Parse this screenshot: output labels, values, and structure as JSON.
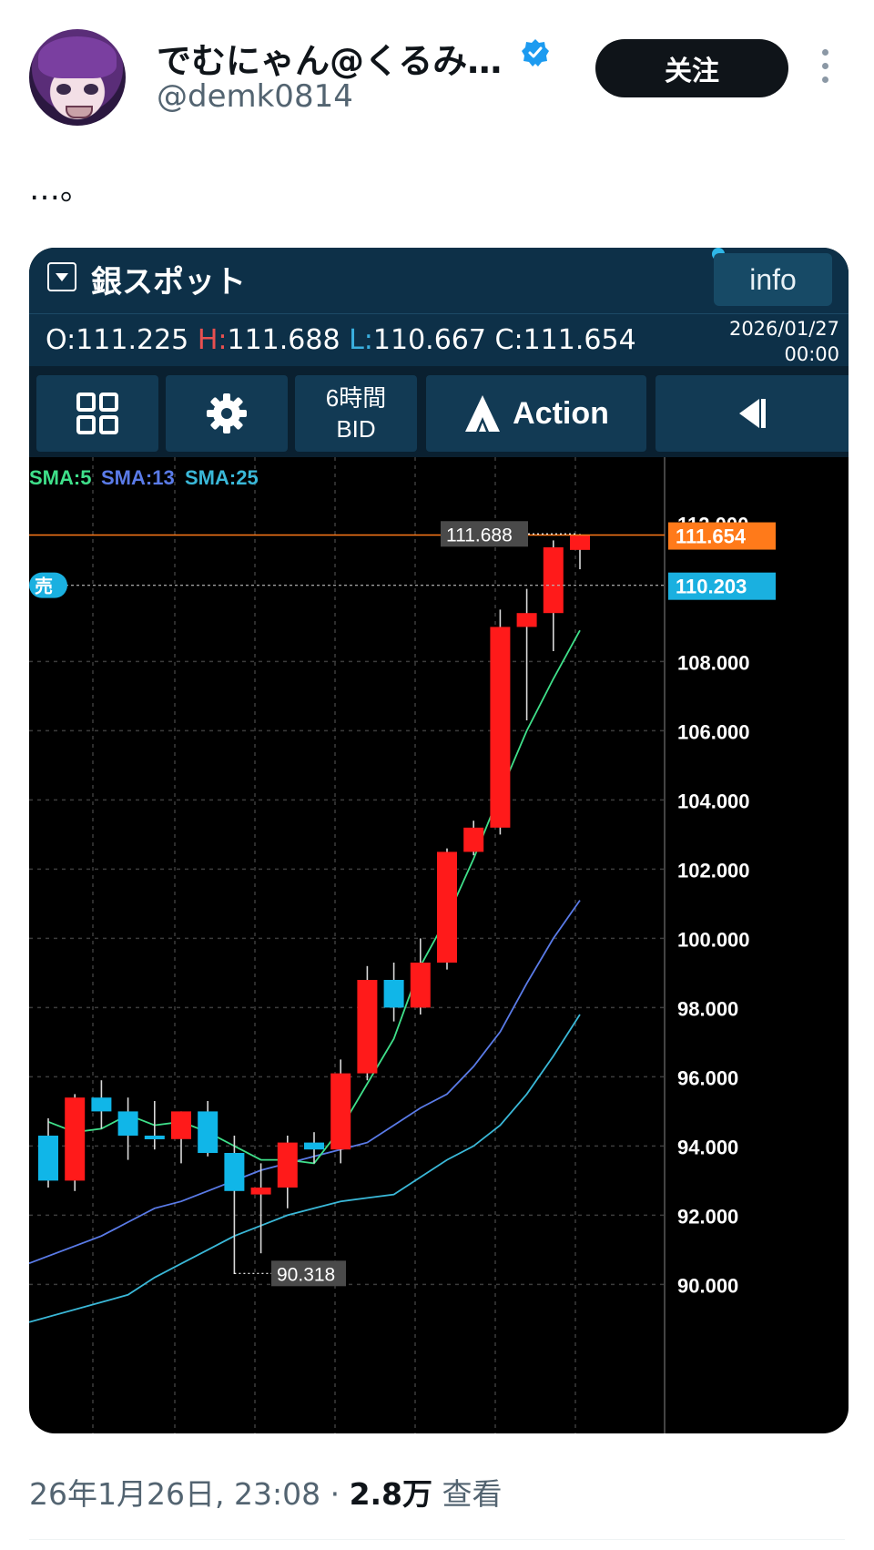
{
  "tweet": {
    "author_name": "でむにゃん@くるみ…",
    "handle": "@demk0814",
    "follow_label": "关注",
    "text": "…。",
    "date": "26年1月26日, 23:08",
    "views_count": "2.8万",
    "views_label": "查看"
  },
  "app": {
    "symbol": "銀スポット",
    "info_label": "info",
    "ohlc": {
      "o_label": "O:",
      "o_value": "111.225",
      "h_label": "H:",
      "h_value": "111.688",
      "l_label": "L:",
      "l_value": "110.667",
      "c_label": "C:",
      "c_value": "111.654"
    },
    "date": "2026/01/27",
    "time": "00:00",
    "toolbar": {
      "timeframe": "6時間",
      "price_type": "BID",
      "action_label": "Action"
    },
    "icons": [
      "grid-icon",
      "gear-icon",
      "action-logo-icon",
      "collapse-left-icon",
      "dropdown-icon",
      "verified-icon",
      "more-icon"
    ]
  },
  "chart_data": {
    "type": "candlestick",
    "sma_labels": [
      {
        "name": "SMA:5",
        "color": "#3fe08a"
      },
      {
        "name": "SMA:13",
        "color": "#5a7be8"
      },
      {
        "name": "SMA:25",
        "color": "#3ab8d8"
      }
    ],
    "ylim": [
      89,
      113.5
    ],
    "y_ticks": [
      "90.000",
      "92.000",
      "94.000",
      "96.000",
      "98.000",
      "100.000",
      "102.000",
      "104.000",
      "106.000",
      "108.000"
    ],
    "candles": [
      {
        "o": 94.3,
        "h": 94.8,
        "l": 92.8,
        "c": 93.0
      },
      {
        "o": 93.0,
        "h": 95.5,
        "l": 92.7,
        "c": 95.4
      },
      {
        "o": 95.4,
        "h": 95.9,
        "l": 94.5,
        "c": 95.0
      },
      {
        "o": 95.0,
        "h": 95.4,
        "l": 93.6,
        "c": 94.3
      },
      {
        "o": 94.3,
        "h": 95.3,
        "l": 93.9,
        "c": 94.2
      },
      {
        "o": 94.2,
        "h": 95.0,
        "l": 93.5,
        "c": 95.0
      },
      {
        "o": 95.0,
        "h": 95.3,
        "l": 93.7,
        "c": 93.8
      },
      {
        "o": 93.8,
        "h": 94.3,
        "l": 90.3,
        "c": 92.7
      },
      {
        "o": 92.6,
        "h": 93.5,
        "l": 90.9,
        "c": 92.8
      },
      {
        "o": 92.8,
        "h": 94.3,
        "l": 92.2,
        "c": 94.1
      },
      {
        "o": 94.1,
        "h": 94.4,
        "l": 93.5,
        "c": 93.9
      },
      {
        "o": 93.9,
        "h": 96.5,
        "l": 93.5,
        "c": 96.1
      },
      {
        "o": 96.1,
        "h": 99.2,
        "l": 95.9,
        "c": 98.8
      },
      {
        "o": 98.8,
        "h": 99.3,
        "l": 97.6,
        "c": 98.0
      },
      {
        "o": 98.0,
        "h": 100.0,
        "l": 97.8,
        "c": 99.3
      },
      {
        "o": 99.3,
        "h": 102.6,
        "l": 99.1,
        "c": 102.5
      },
      {
        "o": 102.5,
        "h": 103.4,
        "l": 102.4,
        "c": 103.2
      },
      {
        "o": 103.2,
        "h": 109.5,
        "l": 103.0,
        "c": 109.0
      },
      {
        "o": 109.0,
        "h": 110.1,
        "l": 106.3,
        "c": 109.4
      },
      {
        "o": 109.4,
        "h": 111.5,
        "l": 108.3,
        "c": 111.3
      },
      {
        "o": 111.225,
        "h": 111.688,
        "l": 110.667,
        "c": 111.654
      }
    ],
    "sma5": [
      94.7,
      94.4,
      94.5,
      94.9,
      94.6,
      94.7,
      94.4,
      94.0,
      93.6,
      93.6,
      93.5,
      94.5,
      95.8,
      97.1,
      99.2,
      100.6,
      102.3,
      104.2,
      106.0,
      107.5,
      108.9
    ],
    "sma13": [
      91.4,
      91.8,
      92.2,
      92.4,
      92.7,
      93.0,
      93.3,
      93.5,
      93.7,
      93.9,
      94.1,
      94.6,
      95.1,
      95.5,
      96.3,
      97.3,
      98.7,
      100.0,
      101.1
    ],
    "sma25": [
      89.7,
      90.2,
      90.6,
      91.0,
      91.4,
      91.7,
      92.0,
      92.2,
      92.4,
      92.5,
      92.6,
      93.1,
      93.6,
      94.0,
      94.6,
      95.5,
      96.6,
      97.8
    ],
    "current_price_label": "111.654",
    "bid_price_label": "110.203",
    "high_label": "111.688",
    "low_label": "90.318",
    "sell_label": "売",
    "top_tick_label": "112.000",
    "colors": {
      "bull": "#ff1a1a",
      "bear": "#10b6e8",
      "current": "#ff7a1a",
      "bid": "#1ab0e0",
      "grid": "#3c3c3c"
    }
  }
}
